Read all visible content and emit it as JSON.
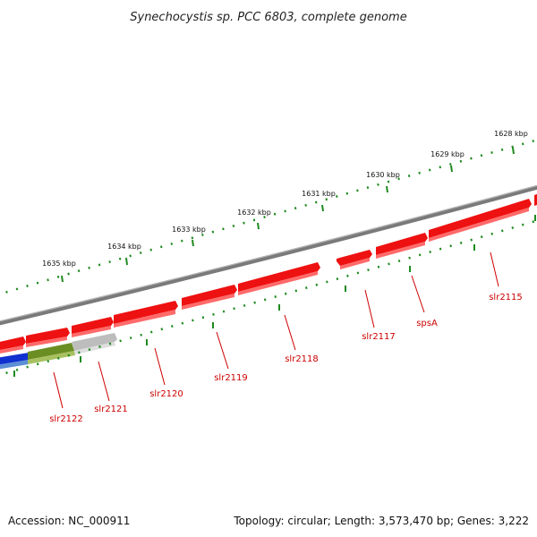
{
  "title": "Synechocystis sp. PCC 6803, complete genome",
  "footer": {
    "accession": "Accession: NC_000911",
    "summary": "Topology: circular; Length: 3,573,470 bp; Genes: 3,222"
  },
  "scale_labels": [
    "1628 kbp",
    "1629 kbp",
    "1630 kbp",
    "1631 kbp",
    "1632 kbp",
    "1633 kbp",
    "1634 kbp",
    "1635 kbp"
  ],
  "gene_labels": [
    "slr2115",
    "spsA",
    "slr2117",
    "slr2118",
    "slr2119",
    "slr2120",
    "slr2121",
    "slr2122"
  ],
  "colors": {
    "backbone": "#7a7a7a",
    "gene_forward": "#ee1111",
    "gene_highlight": "#ff5555",
    "gene_label": "#cc0000",
    "tick": "#1f8a1f",
    "feature_olive": "#6b8e23",
    "feature_blue": "#1030d0",
    "feature_gray": "#bdbdbd"
  }
}
